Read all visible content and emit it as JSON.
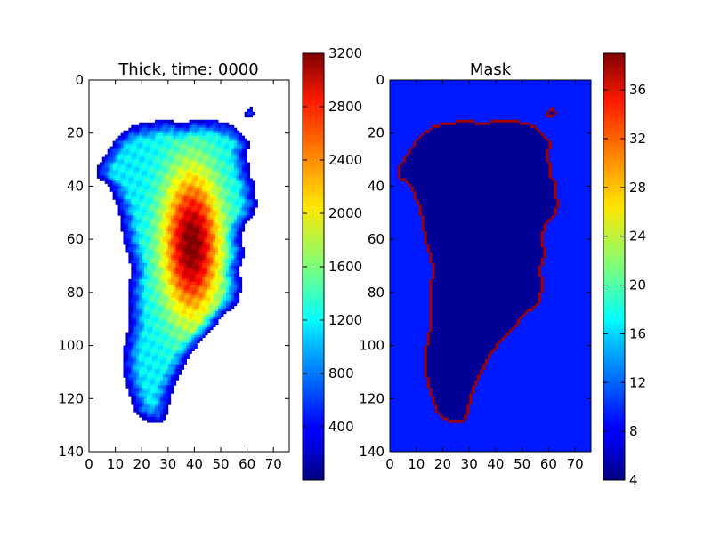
{
  "chart_data": [
    {
      "type": "heatmap",
      "title": "Thick, time: 0000",
      "xlabel": "",
      "ylabel": "",
      "xlim": [
        0,
        76
      ],
      "ylim": [
        140,
        0
      ],
      "xticks": [
        "0",
        "10",
        "20",
        "30",
        "40",
        "50",
        "60",
        "70"
      ],
      "yticks": [
        "0",
        "20",
        "40",
        "60",
        "80",
        "100",
        "120",
        "140"
      ],
      "colormap": "jet",
      "colorbar": {
        "range": [
          0,
          3200
        ],
        "ticks": [
          "400",
          "800",
          "1200",
          "1600",
          "2000",
          "2400",
          "2800",
          "3200"
        ]
      },
      "background": "#ffffff",
      "field": "ice thickness over a Greenland-shaped region; ~3000+ in the central interior (x≈35-45, y≈45-80), decreasing to a few hundred at the margins"
    },
    {
      "type": "heatmap",
      "title": "Mask",
      "xlabel": "",
      "ylabel": "",
      "xlim": [
        0,
        76
      ],
      "ylim": [
        140,
        0
      ],
      "xticks": [
        "0",
        "10",
        "20",
        "30",
        "40",
        "50",
        "60",
        "70"
      ],
      "yticks": [
        "0",
        "20",
        "40",
        "60",
        "80",
        "100",
        "120",
        "140"
      ],
      "colormap": "jet",
      "colorbar": {
        "range": [
          4,
          39
        ],
        "ticks": [
          "4",
          "8",
          "12",
          "16",
          "20",
          "24",
          "28",
          "32",
          "36"
        ]
      },
      "regions": [
        {
          "label": "outside",
          "value": 8,
          "color": "#0019ff"
        },
        {
          "label": "interior",
          "value": 4,
          "color": "#000096"
        },
        {
          "label": "margin",
          "value": 39,
          "color": "#a00000"
        }
      ]
    }
  ],
  "outline": [
    [
      17,
      17
    ],
    [
      22,
      16
    ],
    [
      28,
      15
    ],
    [
      36,
      16
    ],
    [
      41,
      15
    ],
    [
      48,
      15
    ],
    [
      51,
      16
    ],
    [
      55,
      17
    ],
    [
      58,
      20
    ],
    [
      61,
      23
    ],
    [
      60,
      29
    ],
    [
      61,
      33
    ],
    [
      61,
      36
    ],
    [
      63,
      38
    ],
    [
      63,
      43
    ],
    [
      64,
      47
    ],
    [
      62,
      52
    ],
    [
      59,
      55
    ],
    [
      58,
      60
    ],
    [
      59,
      66
    ],
    [
      57,
      71
    ],
    [
      58,
      77
    ],
    [
      57,
      84
    ],
    [
      54,
      87
    ],
    [
      51,
      88
    ],
    [
      48,
      93
    ],
    [
      44,
      97
    ],
    [
      41,
      100
    ],
    [
      38,
      104
    ],
    [
      36,
      108
    ],
    [
      34,
      112
    ],
    [
      32,
      116
    ],
    [
      31,
      120
    ],
    [
      30,
      124
    ],
    [
      29,
      128
    ],
    [
      27,
      129
    ],
    [
      24,
      129
    ],
    [
      21,
      128
    ],
    [
      18,
      126
    ],
    [
      16,
      120
    ],
    [
      14,
      115
    ],
    [
      13,
      108
    ],
    [
      13,
      103
    ],
    [
      14,
      98
    ],
    [
      15,
      92
    ],
    [
      15,
      85
    ],
    [
      15,
      78
    ],
    [
      16,
      72
    ],
    [
      15,
      66
    ],
    [
      13,
      60
    ],
    [
      12,
      54
    ],
    [
      11,
      48
    ],
    [
      9,
      44
    ],
    [
      8,
      40
    ],
    [
      5,
      38
    ],
    [
      3,
      36
    ],
    [
      3,
      33
    ],
    [
      5,
      30
    ],
    [
      7,
      27
    ],
    [
      9,
      24
    ],
    [
      11,
      21
    ],
    [
      14,
      19
    ]
  ],
  "island": [
    [
      60,
      11
    ],
    [
      62,
      10
    ],
    [
      63,
      13
    ],
    [
      61,
      14
    ],
    [
      59,
      14
    ]
  ]
}
